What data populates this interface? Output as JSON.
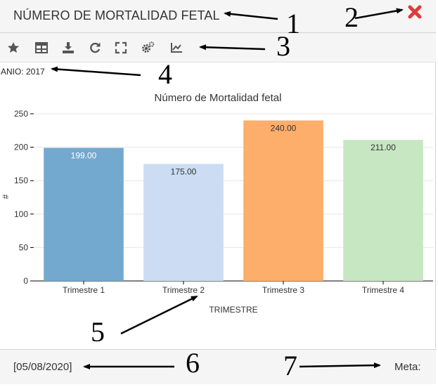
{
  "window": {
    "title": "NÚMERO DE MORTALIDAD FETAL"
  },
  "close_icon": "close-icon",
  "toolbar": {
    "icons": [
      "star-icon",
      "table-icon",
      "download-icon",
      "refresh-icon",
      "fullscreen-icon",
      "settings-icon",
      "line-chart-icon"
    ]
  },
  "filter": {
    "year_label": "ANIO: 2017"
  },
  "colors": {
    "close": "#e03a3a",
    "toolbar_icon": "#555555",
    "bars": [
      "#74a9cf",
      "#ccdcf2",
      "#fdae6b",
      "#c7e6c2"
    ]
  },
  "chart_data": {
    "type": "bar",
    "title": "Número de Mortalidad fetal",
    "categories": [
      "Trimestre 1",
      "Trimestre 2",
      "Trimestre 3",
      "Trimestre 4"
    ],
    "values": [
      199,
      175,
      240,
      211
    ],
    "value_labels": [
      "199.00",
      "175.00",
      "240.00",
      "211.00"
    ],
    "xlabel": "TRIMESTRE",
    "ylabel": "#",
    "ylim": [
      0,
      250
    ],
    "yticks": [
      0,
      50,
      100,
      150,
      200,
      250
    ],
    "grid": true
  },
  "footer": {
    "date": "[05/08/2020]",
    "meta_label": "Meta:"
  },
  "annotations": [
    "1",
    "2",
    "3",
    "4",
    "5",
    "6",
    "7"
  ]
}
